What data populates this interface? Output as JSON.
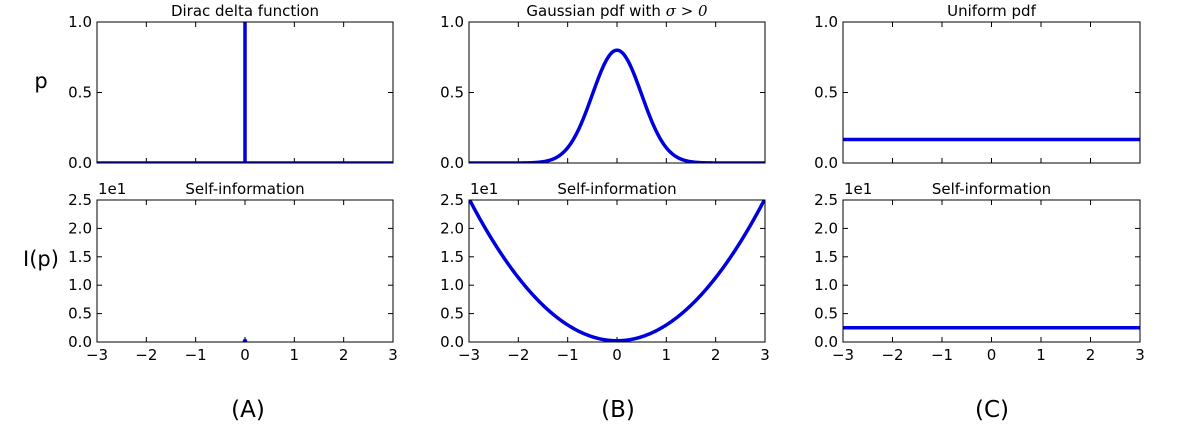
{
  "row_labels": {
    "top": "p",
    "bottom": "I(p)"
  },
  "panel_labels": [
    "(A)",
    "(B)",
    "(C)"
  ],
  "colors": {
    "line": "#0000dd",
    "axis": "#000000"
  },
  "chart_data": [
    {
      "type": "line",
      "title": "Dirac delta function",
      "ylabel": "p",
      "xlim": [
        -3,
        3
      ],
      "ylim": [
        0,
        1
      ],
      "yticks": [
        "0.0",
        "0.5",
        "1.0"
      ],
      "xtick_labels_shown": false,
      "series": [
        {
          "x": [
            -3,
            0,
            0,
            0,
            3
          ],
          "y": [
            0,
            0,
            1,
            0,
            0
          ]
        }
      ]
    },
    {
      "type": "line",
      "title": "Gaussian pdf with",
      "title_math": "σ > 0",
      "xlim": [
        -3,
        3
      ],
      "ylim": [
        0,
        1
      ],
      "yticks": [
        "0.0",
        "0.5",
        "1.0"
      ],
      "xtick_labels_shown": false,
      "series": [
        {
          "function": "gaussian",
          "mean": 0,
          "sigma": 0.5,
          "peak": 0.8
        }
      ]
    },
    {
      "type": "line",
      "title": "Uniform pdf",
      "xlim": [
        -3,
        3
      ],
      "ylim": [
        0,
        1
      ],
      "yticks": [
        "0.0",
        "0.5",
        "1.0"
      ],
      "xtick_labels_shown": false,
      "series": [
        {
          "x": [
            -3,
            3
          ],
          "y": [
            0.1667,
            0.1667
          ]
        }
      ]
    },
    {
      "type": "line",
      "title": "Self-information",
      "ylabel": "I(p)",
      "scale_label": "1e1",
      "xlim": [
        -3,
        3
      ],
      "ylim": [
        0,
        2.5
      ],
      "yticks": [
        "0.0",
        "0.5",
        "1.0",
        "1.5",
        "2.0",
        "2.5"
      ],
      "xticks": [
        "−3",
        "−2",
        "−1",
        "0",
        "1",
        "2",
        "3"
      ],
      "series": [
        {
          "x": [
            -0.02,
            0,
            0.02
          ],
          "y": [
            0,
            0.03,
            0
          ]
        }
      ]
    },
    {
      "type": "line",
      "title": "Self-information",
      "scale_label": "1e1",
      "xlim": [
        -3,
        3
      ],
      "ylim": [
        0,
        2.5
      ],
      "yticks": [
        "0.0",
        "0.5",
        "1.0",
        "1.5",
        "2.0",
        "2.5"
      ],
      "xticks": [
        "−3",
        "−2",
        "−1",
        "0",
        "1",
        "2",
        "3"
      ],
      "series": [
        {
          "function": "quadratic",
          "a": 0.2778,
          "c": 0.0223
        }
      ]
    },
    {
      "type": "line",
      "title": "Self-information",
      "scale_label": "1e1",
      "xlim": [
        -3,
        3
      ],
      "ylim": [
        0,
        2.5
      ],
      "yticks": [
        "0.0",
        "0.5",
        "1.0",
        "1.5",
        "2.0",
        "2.5"
      ],
      "xticks": [
        "−3",
        "−2",
        "−1",
        "0",
        "1",
        "2",
        "3"
      ],
      "series": [
        {
          "x": [
            -3,
            3
          ],
          "y": [
            0.25,
            0.25
          ]
        }
      ]
    }
  ]
}
